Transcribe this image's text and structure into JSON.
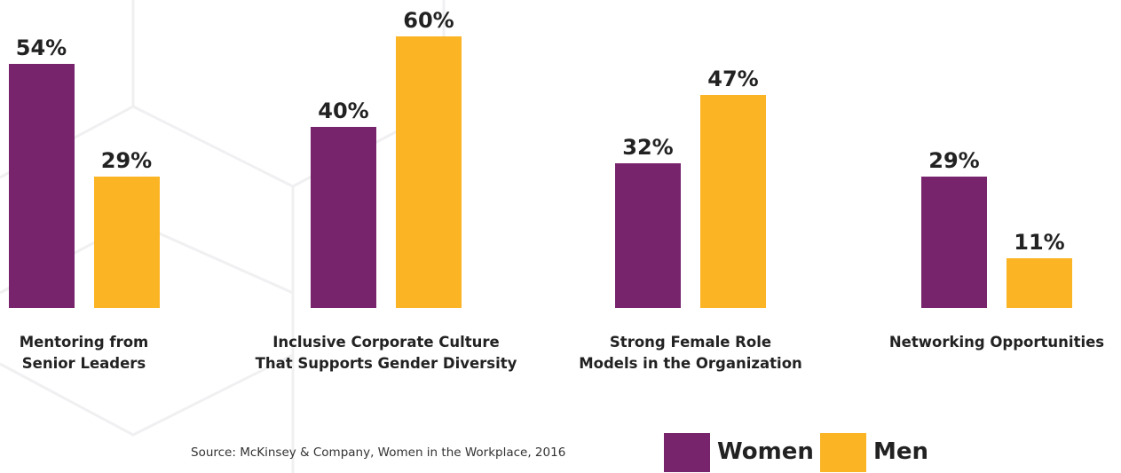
{
  "chart_data": {
    "type": "bar",
    "categories": [
      "Mentoring from Senior Leaders",
      "Inclusive Corporate Culture That Supports Gender Diversity",
      "Strong Female Role Models in the Organization",
      "Networking Opportunities"
    ],
    "series": [
      {
        "name": "Women",
        "color": "#77246c",
        "values": [
          54,
          40,
          32,
          29
        ],
        "value_labels": [
          "54%",
          "40%",
          "32%",
          "29%"
        ]
      },
      {
        "name": "Men",
        "color": "#fbb424",
        "values": [
          29,
          60,
          47,
          11
        ],
        "value_labels": [
          "29%",
          "60%",
          "47%",
          "11%"
        ]
      }
    ],
    "source": "Source: McKinsey & Company, Women in the Workplace, 2016"
  }
}
